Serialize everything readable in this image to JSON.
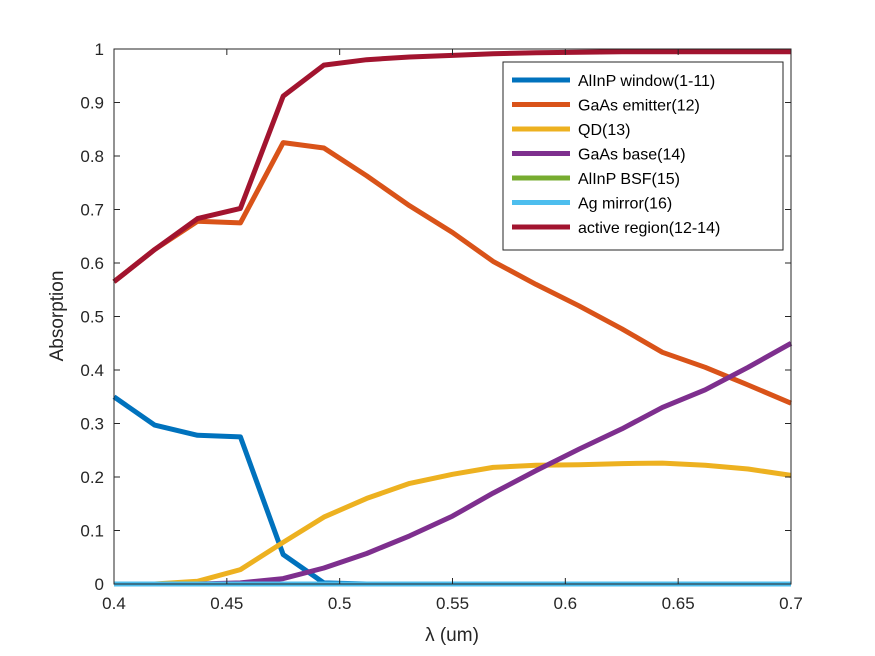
{
  "chart_data": {
    "type": "line",
    "title": "",
    "xlabel": "λ (um)",
    "ylabel": "Absorption",
    "xlim": [
      0.4,
      0.7
    ],
    "ylim": [
      0,
      1
    ],
    "x_ticks": [
      "0.4",
      "0.45",
      "0.5",
      "0.55",
      "0.6",
      "0.65",
      "0.7"
    ],
    "y_ticks": [
      "0",
      "0.1",
      "0.2",
      "0.3",
      "0.4",
      "0.5",
      "0.6",
      "0.7",
      "0.8",
      "0.9",
      "1"
    ],
    "grid": false,
    "legend_position": "top-right",
    "series": [
      {
        "name": "AlInP window(1-11)",
        "color": "#0072BD",
        "x": [
          0.4,
          0.418,
          0.437,
          0.456,
          0.475,
          0.493,
          0.512,
          0.531,
          0.55,
          0.568,
          0.587,
          0.606,
          0.625,
          0.643,
          0.662,
          0.681,
          0.7
        ],
        "y": [
          0.35,
          0.297,
          0.278,
          0.275,
          0.055,
          0.002,
          0.0,
          0.0,
          0.0,
          0.0,
          0.0,
          0.0,
          0.0,
          0.0,
          0.0,
          0.0,
          0.0
        ]
      },
      {
        "name": "GaAs emitter(12)",
        "color": "#D95319",
        "x": [
          0.4,
          0.418,
          0.437,
          0.456,
          0.475,
          0.493,
          0.512,
          0.531,
          0.55,
          0.568,
          0.587,
          0.606,
          0.625,
          0.643,
          0.662,
          0.681,
          0.7
        ],
        "y": [
          0.565,
          0.625,
          0.678,
          0.675,
          0.825,
          0.815,
          0.763,
          0.707,
          0.657,
          0.603,
          0.56,
          0.52,
          0.477,
          0.433,
          0.405,
          0.372,
          0.338
        ]
      },
      {
        "name": "QD(13)",
        "color": "#EDB120",
        "x": [
          0.4,
          0.418,
          0.437,
          0.456,
          0.475,
          0.493,
          0.512,
          0.531,
          0.55,
          0.568,
          0.587,
          0.606,
          0.625,
          0.643,
          0.662,
          0.681,
          0.7
        ],
        "y": [
          0.0,
          0.0,
          0.005,
          0.027,
          0.078,
          0.125,
          0.16,
          0.188,
          0.205,
          0.218,
          0.222,
          0.223,
          0.225,
          0.226,
          0.222,
          0.215,
          0.203
        ]
      },
      {
        "name": "GaAs base(14)",
        "color": "#7E2F8E",
        "x": [
          0.4,
          0.418,
          0.437,
          0.456,
          0.475,
          0.493,
          0.512,
          0.531,
          0.55,
          0.568,
          0.587,
          0.606,
          0.625,
          0.643,
          0.662,
          0.681,
          0.7
        ],
        "y": [
          0.0,
          0.0,
          0.0,
          0.002,
          0.01,
          0.03,
          0.057,
          0.09,
          0.127,
          0.17,
          0.212,
          0.252,
          0.29,
          0.33,
          0.363,
          0.405,
          0.45
        ]
      },
      {
        "name": "AlInP BSF(15)",
        "color": "#77AC30",
        "x": [
          0.4,
          0.7
        ],
        "y": [
          0.0,
          0.0
        ]
      },
      {
        "name": "Ag mirror(16)",
        "color": "#4DBEEE",
        "x": [
          0.4,
          0.7
        ],
        "y": [
          0.0,
          0.0
        ]
      },
      {
        "name": "active region(12-14)",
        "color": "#A2142F",
        "x": [
          0.4,
          0.418,
          0.437,
          0.456,
          0.475,
          0.493,
          0.512,
          0.531,
          0.55,
          0.568,
          0.587,
          0.606,
          0.625,
          0.643,
          0.662,
          0.681,
          0.7
        ],
        "y": [
          0.565,
          0.625,
          0.683,
          0.702,
          0.912,
          0.97,
          0.98,
          0.985,
          0.988,
          0.991,
          0.993,
          0.994,
          0.995,
          0.995,
          0.995,
          0.995,
          0.995
        ]
      }
    ]
  }
}
